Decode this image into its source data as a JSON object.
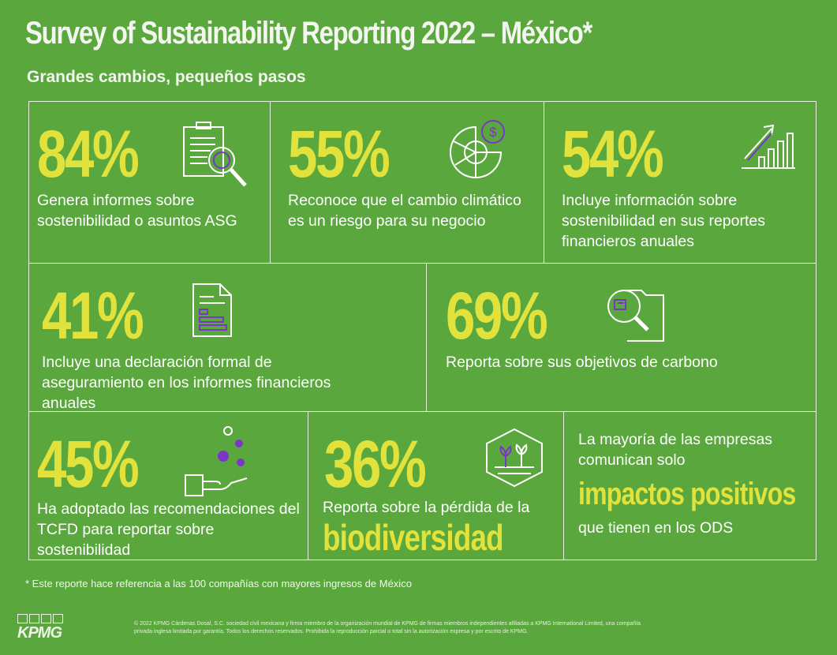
{
  "header": {
    "title": "Survey of Sustainability Reporting 2022 – México*",
    "subtitle": "Grandes cambios, pequeños pasos"
  },
  "colors": {
    "background": "#5aa83d",
    "accent": "#e2e23c",
    "icon_accent": "#7b35c8",
    "line": "#e9f3e2"
  },
  "stats": [
    {
      "value": "84%",
      "text": "Genera informes sobre sostenibilidad o asuntos ASG",
      "icon": "clipboard-magnifier-icon"
    },
    {
      "value": "55%",
      "text": "Reconoce que el cambio climático es un riesgo para su negocio",
      "icon": "pie-dollar-icon"
    },
    {
      "value": "54%",
      "text": "Incluye información sobre sostenibilidad en sus reportes financieros anuales",
      "icon": "growth-chart-icon"
    },
    {
      "value": "41%",
      "text": "Incluye una declaración formal de aseguramiento en los informes financieros anuales",
      "icon": "document-icon"
    },
    {
      "value": "69%",
      "text": "Reporta sobre sus objetivos de carbono",
      "icon": "folder-magnifier-icon"
    },
    {
      "value": "45%",
      "text": "Ha adoptado las recomendaciones del TCFD para reportar sobre sostenibilidad",
      "icon": "hand-coins-icon"
    },
    {
      "value": "36%",
      "text": "Reporta sobre la pérdida de la",
      "highlight": "biodiversidad",
      "icon": "plants-hexagon-icon"
    }
  ],
  "callout": {
    "line1": "La mayoría de las empresas comunican solo",
    "highlight": "impactos positivos",
    "line2": "que tienen en los ODS"
  },
  "footnote": "* Este reporte hace referencia a las 100 compañías con mayores ingresos de México",
  "logo": "KPMG",
  "legal": "© 2022 KPMG Cárdenas Dosal, S.C. sociedad civil mexicana y firma miembro de la organización mundial de KPMG de firmas miembros independientes afiliadas a KPMG International Limited, una compañía privada inglesa limitada por garantía. Todos los derechos reservados. Prohibida la reproducción parcial o total sin la autorización expresa y por escrito de KPMG."
}
